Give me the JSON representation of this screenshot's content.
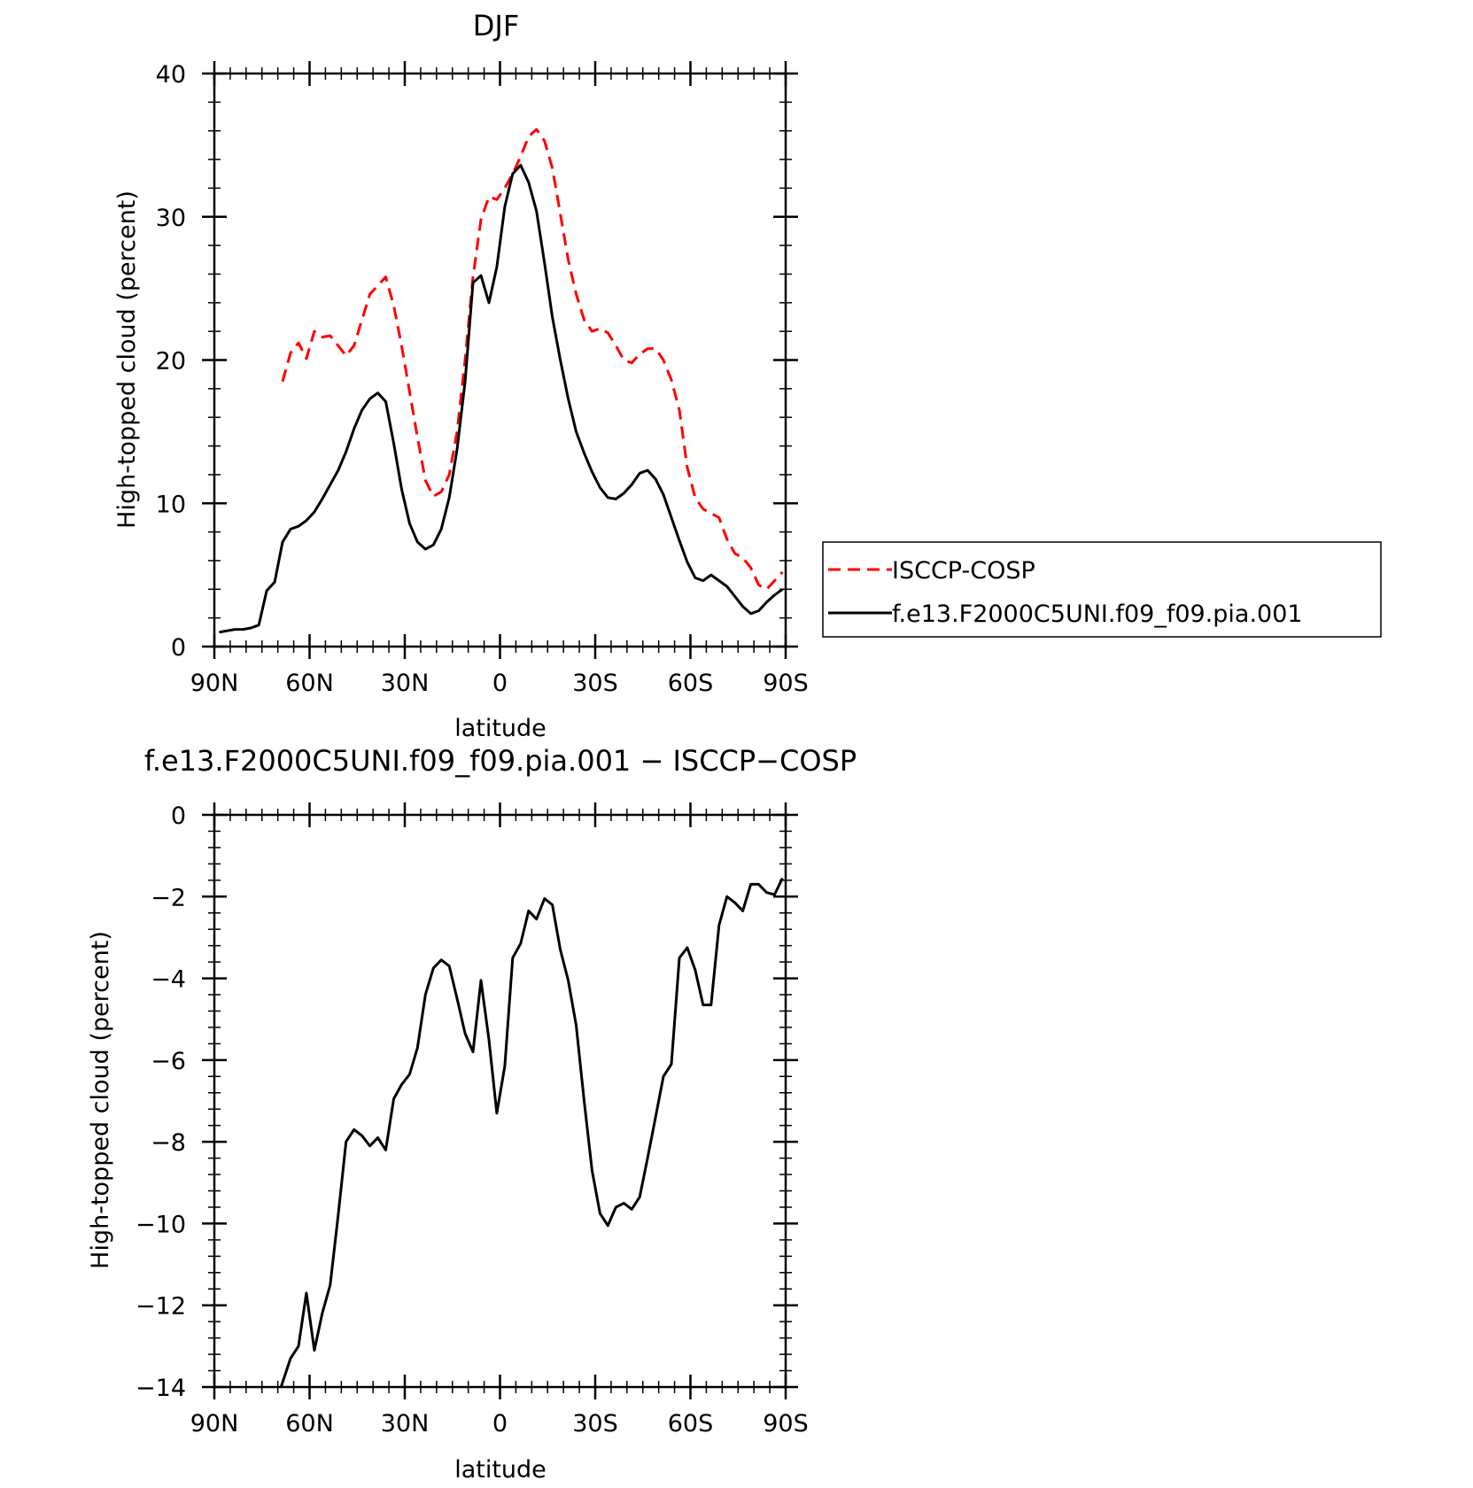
{
  "chart_data": [
    {
      "type": "line",
      "title": "DJF",
      "xlabel": "latitude",
      "ylabel": "High-topped cloud (percent)",
      "xlim": [
        90,
        -90
      ],
      "ylim": [
        0,
        40
      ],
      "x_ticks": [
        90,
        60,
        30,
        0,
        -30,
        -60,
        -90
      ],
      "x_tick_labels": [
        "90N",
        "60N",
        "30N",
        "0",
        "30S",
        "60S",
        "90S"
      ],
      "y_ticks": [
        0,
        10,
        20,
        30,
        40
      ],
      "y_tick_labels": [
        "0",
        "10",
        "20",
        "30",
        "40"
      ],
      "legend_position": "right",
      "series": [
        {
          "name": "ISCCP-COSP",
          "color": "#ff0000",
          "dash": "dashed",
          "x": [
            68.5,
            66,
            63.5,
            61,
            58.5,
            56,
            53.5,
            51,
            48.5,
            46,
            43.5,
            41,
            38.5,
            36,
            33.5,
            31,
            28.5,
            26,
            23.5,
            21,
            18.5,
            16,
            13.5,
            11,
            8.5,
            6,
            3.5,
            1,
            -1.5,
            -4,
            -6.5,
            -9,
            -11.5,
            -14,
            -16.5,
            -19,
            -21.5,
            -24,
            -26.5,
            -29,
            -31.5,
            -34,
            -36.5,
            -39,
            -41.5,
            -44,
            -46.5,
            -49,
            -51.5,
            -54,
            -56.5,
            -59,
            -61.5,
            -64,
            -66.5,
            -69,
            -71.5,
            -74,
            -76.5,
            -79,
            -81.5,
            -84,
            -86.5,
            -89
          ],
          "y": [
            18.5,
            20.5,
            21.2,
            20.1,
            22.0,
            21.6,
            21.7,
            21.0,
            20.3,
            21.0,
            22.8,
            24.6,
            25.2,
            25.8,
            23.8,
            21.0,
            17.8,
            14.6,
            11.6,
            10.5,
            10.8,
            12.0,
            15.0,
            20.0,
            25.8,
            29.8,
            31.4,
            31.2,
            32.0,
            33.0,
            34.2,
            35.6,
            36.1,
            35.3,
            33.4,
            30.2,
            27.0,
            24.6,
            22.8,
            22.0,
            22.2,
            21.9,
            21.0,
            20.0,
            19.8,
            20.4,
            20.8,
            20.8,
            20.0,
            18.6,
            16.5,
            12.5,
            10.4,
            9.6,
            9.3,
            9.0,
            7.5,
            6.5,
            6.2,
            5.5,
            4.3,
            4.0,
            4.6,
            5.2
          ]
        },
        {
          "name": "f.e13.F2000C5UNI.f09_f09.pia.001",
          "color": "#000000",
          "dash": "solid",
          "x": [
            88.5,
            86,
            83.5,
            81,
            78.5,
            76,
            73.5,
            71,
            68.5,
            66,
            63.5,
            61,
            58.5,
            56,
            53.5,
            51,
            48.5,
            46,
            43.5,
            41,
            38.5,
            36,
            33.5,
            31,
            28.5,
            26,
            23.5,
            21,
            18.5,
            16,
            13.5,
            11,
            8.5,
            6,
            3.5,
            1,
            -1.5,
            -4,
            -6.5,
            -9,
            -11.5,
            -14,
            -16.5,
            -19,
            -21.5,
            -24,
            -26.5,
            -29,
            -31.5,
            -34,
            -36.5,
            -39,
            -41.5,
            -44,
            -46.5,
            -49,
            -51.5,
            -54,
            -56.5,
            -59,
            -61.5,
            -64,
            -66.5,
            -69,
            -71.5,
            -74,
            -76.5,
            -79,
            -81.5,
            -84,
            -86.5,
            -89
          ],
          "y": [
            1.0,
            1.1,
            1.2,
            1.2,
            1.3,
            1.5,
            3.9,
            4.5,
            7.3,
            8.2,
            8.4,
            8.8,
            9.4,
            10.3,
            11.3,
            12.3,
            13.6,
            15.2,
            16.5,
            17.3,
            17.7,
            17.1,
            14.2,
            11.0,
            8.6,
            7.3,
            6.8,
            7.1,
            8.2,
            10.4,
            13.8,
            18.5,
            25.4,
            25.9,
            24.0,
            26.5,
            30.7,
            33.0,
            33.6,
            32.4,
            30.4,
            26.8,
            23.0,
            20.0,
            17.3,
            15.0,
            13.5,
            12.2,
            11.1,
            10.4,
            10.3,
            10.7,
            11.3,
            12.1,
            12.3,
            11.7,
            10.6,
            9.0,
            7.4,
            5.9,
            4.8,
            4.6,
            5.0,
            4.6,
            4.2,
            3.5,
            2.8,
            2.3,
            2.5,
            3.1,
            3.6,
            4.0
          ]
        }
      ]
    },
    {
      "type": "line",
      "title": "f.e13.F2000C5UNI.f09_f09.pia.001  −  ISCCP−COSP",
      "xlabel": "latitude",
      "ylabel": "High-topped cloud (percent)",
      "xlim": [
        90,
        -90
      ],
      "ylim": [
        -14,
        0
      ],
      "x_ticks": [
        90,
        60,
        30,
        0,
        -30,
        -60,
        -90
      ],
      "x_tick_labels": [
        "90N",
        "60N",
        "30N",
        "0",
        "30S",
        "60S",
        "90S"
      ],
      "y_ticks": [
        0,
        -2,
        -4,
        -6,
        -8,
        -10,
        -12,
        -14
      ],
      "y_tick_labels": [
        "0",
        "−2",
        "−4",
        "−6",
        "−8",
        "−10",
        "−12",
        "−14"
      ],
      "series": [
        {
          "color": "#000000",
          "dash": "solid",
          "x": [
            69,
            66,
            63.5,
            61,
            58.5,
            56,
            53.5,
            51,
            48.5,
            46,
            43.5,
            41,
            38.5,
            36,
            33.5,
            31,
            28.5,
            26,
            23.5,
            21,
            18.5,
            16,
            13.5,
            11,
            8.5,
            6,
            3.5,
            1,
            -1.5,
            -4,
            -6.5,
            -9,
            -11.5,
            -14,
            -16.5,
            -19,
            -21.5,
            -24,
            -26.5,
            -29,
            -31.5,
            -34,
            -36.5,
            -39,
            -41.5,
            -44,
            -46.5,
            -49,
            -51.5,
            -54,
            -56.5,
            -59,
            -61.5,
            -64,
            -66.5,
            -69,
            -71.5,
            -74,
            -76.5,
            -79,
            -81.5,
            -84,
            -86.5,
            -89
          ],
          "y": [
            -14.0,
            -13.3,
            -13.0,
            -11.7,
            -13.1,
            -12.2,
            -11.5,
            -9.8,
            -8.0,
            -7.7,
            -7.85,
            -8.1,
            -7.9,
            -8.2,
            -6.95,
            -6.6,
            -6.35,
            -5.7,
            -4.4,
            -3.75,
            -3.55,
            -3.7,
            -4.5,
            -5.35,
            -5.8,
            -4.05,
            -5.5,
            -7.3,
            -6.15,
            -3.5,
            -3.15,
            -2.35,
            -2.55,
            -2.05,
            -2.2,
            -3.3,
            -4.05,
            -5.15,
            -7.0,
            -8.7,
            -9.75,
            -10.05,
            -9.6,
            -9.5,
            -9.65,
            -9.35,
            -8.4,
            -7.4,
            -6.4,
            -6.1,
            -3.5,
            -3.25,
            -3.8,
            -4.65,
            -4.65,
            -2.7,
            -2.0,
            -2.15,
            -2.35,
            -1.7,
            -1.7,
            -1.9,
            -1.95,
            -1.55
          ]
        }
      ]
    }
  ]
}
